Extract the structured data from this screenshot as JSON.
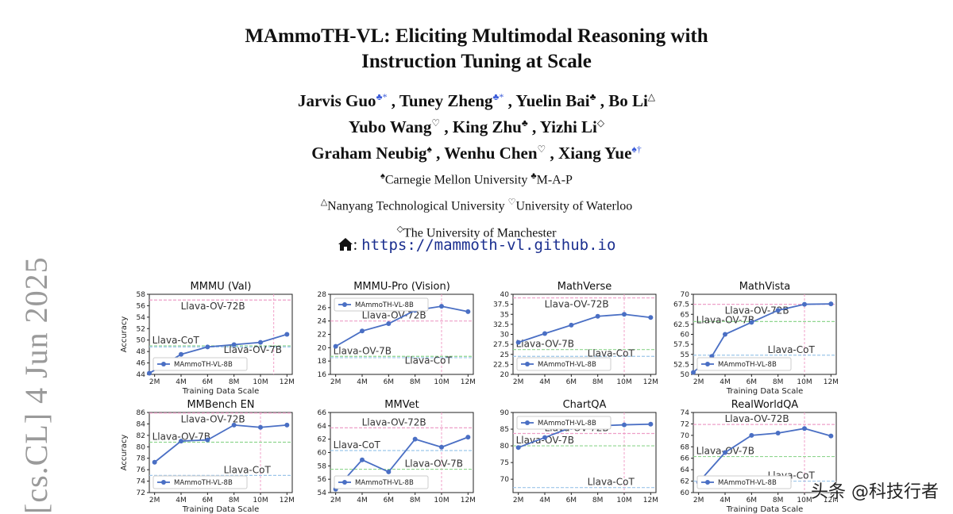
{
  "sidebar_stamp": "[cs.CL]  4 Jun 2025",
  "paper": {
    "title_line1": "MAmmoTH-VL: Eliciting Multimodal Reasoning with",
    "title_line2": "Instruction Tuning at Scale",
    "authors": [
      [
        {
          "name": "Jarvis Guo",
          "mark": "♣*"
        },
        {
          "name": "Tuney Zheng",
          "mark": "♣*"
        },
        {
          "name": "Yuelin Bai",
          "mark": "♣"
        },
        {
          "name": "Bo Li",
          "mark": "△"
        }
      ],
      [
        {
          "name": "Yubo Wang",
          "mark": "♡"
        },
        {
          "name": "King Zhu",
          "mark": "♣"
        },
        {
          "name": "Yizhi Li",
          "mark": "◇"
        }
      ],
      [
        {
          "name": "Graham Neubig",
          "mark": "♠"
        },
        {
          "name": "Wenhu Chen",
          "mark": "♡"
        },
        {
          "name": "Xiang Yue",
          "mark": "♠†"
        }
      ]
    ],
    "affiliations": [
      [
        {
          "mark": "♠",
          "text": "Carnegie Mellon University"
        },
        {
          "mark": "♣",
          "text": "M-A-P"
        }
      ],
      [
        {
          "mark": "△",
          "text": "Nanyang Technological University"
        },
        {
          "mark": "♡",
          "text": "University of Waterloo"
        }
      ],
      [
        {
          "mark": "◇",
          "text": "The University of Manchester"
        }
      ]
    ],
    "homepage_sep": ":",
    "homepage_url": "https://mammoth-vl.github.io"
  },
  "watermark": "头条 @科技行者",
  "colors": {
    "line": "#4a6fc4",
    "pink_ref": "#ee9fc8",
    "green_ref": "#8fd68f",
    "blue_ref": "#9cc6ea",
    "vline": "#f2a0c8"
  },
  "chart_data": [
    {
      "type": "line",
      "title": "MMMU (Val)",
      "xlabel": "Training Data Scale",
      "ylabel": "Accuracy",
      "x_ticks": [
        "2M",
        "4M",
        "6M",
        "8M",
        "10M",
        "12M"
      ],
      "ylim": [
        44,
        58
      ],
      "y_ticks": [
        44,
        46,
        48,
        50,
        52,
        54,
        56,
        58
      ],
      "series": [
        {
          "name": "MAmmoTH-VL-8B",
          "x": [
            1.6,
            4,
            6,
            8,
            10,
            12
          ],
          "y": [
            44.2,
            47.5,
            48.8,
            49.2,
            49.6,
            51.0
          ]
        }
      ],
      "refs": [
        {
          "label": "Llava-OV-72B",
          "y": 57.0,
          "color": "pink"
        },
        {
          "label": "Llava-CoT",
          "y": 49.0,
          "color": "green"
        },
        {
          "label": "Llava-OV-7B",
          "y": 48.8,
          "color": "blue"
        }
      ],
      "vline_x": 11.0,
      "legend": "bottom-left"
    },
    {
      "type": "line",
      "title": "MMMU-Pro (Vision)",
      "xlabel": "",
      "ylabel": "",
      "x_ticks": [
        "2M",
        "4M",
        "6M",
        "8M",
        "10M",
        "12M"
      ],
      "ylim": [
        16,
        28
      ],
      "y_ticks": [
        16,
        18,
        20,
        22,
        24,
        26,
        28
      ],
      "series": [
        {
          "name": "MAmmoTH-VL-8B",
          "x": [
            2,
            4,
            6,
            8,
            10,
            12
          ],
          "y": [
            20.2,
            22.5,
            23.6,
            25.6,
            26.2,
            25.4
          ]
        }
      ],
      "refs": [
        {
          "label": "Llava-OV-72B",
          "y": 24.0,
          "color": "pink"
        },
        {
          "label": "Llava-OV-7B",
          "y": 18.7,
          "color": "green"
        },
        {
          "label": "Llava-CoT",
          "y": 18.5,
          "color": "blue"
        }
      ],
      "vline_x": 10.0,
      "legend": "top-left"
    },
    {
      "type": "line",
      "title": "MathVerse",
      "xlabel": "",
      "ylabel": "",
      "x_ticks": [
        "2M",
        "4M",
        "6M",
        "8M",
        "10M",
        "12M"
      ],
      "ylim": [
        20,
        40
      ],
      "y_ticks": [
        20.0,
        22.5,
        25.0,
        27.5,
        30.0,
        32.5,
        35.0,
        37.5,
        40.0
      ],
      "series": [
        {
          "name": "MAmmoTH-VL-8B",
          "x": [
            2,
            4,
            6,
            8,
            10,
            12
          ],
          "y": [
            28.0,
            30.2,
            32.3,
            34.5,
            35.0,
            34.2
          ]
        }
      ],
      "refs": [
        {
          "label": "Llava-OV-72B",
          "y": 39.1,
          "color": "pink"
        },
        {
          "label": "Llava-OV-7B",
          "y": 26.2,
          "color": "green"
        },
        {
          "label": "Llava-CoT",
          "y": 24.5,
          "color": "blue"
        }
      ],
      "vline_x": 10.0,
      "legend": "bottom-left"
    },
    {
      "type": "line",
      "title": "MathVista",
      "xlabel": "Training Data Scale",
      "ylabel": "",
      "x_ticks": [
        "2M",
        "4M",
        "6M",
        "8M",
        "10M",
        "12M"
      ],
      "ylim": [
        50,
        70
      ],
      "y_ticks": [
        50.0,
        52.5,
        55.0,
        57.5,
        60.0,
        62.5,
        65.0,
        67.5,
        70.0
      ],
      "series": [
        {
          "name": "MAmmoTH-VL-8B",
          "x": [
            1.6,
            3,
            4,
            6,
            8,
            10,
            12
          ],
          "y": [
            50.5,
            54.5,
            60.0,
            63.0,
            66.0,
            67.5,
            67.6
          ]
        }
      ],
      "refs": [
        {
          "label": "Llava-OV-72B",
          "y": 67.5,
          "color": "pink"
        },
        {
          "label": "Llava-OV-7B",
          "y": 63.2,
          "color": "green"
        },
        {
          "label": "Llava-CoT",
          "y": 54.8,
          "color": "blue"
        }
      ],
      "vline_x": 10.0,
      "legend": "bottom-left"
    },
    {
      "type": "line",
      "title": "MMBench EN",
      "xlabel": "Training Data Scale",
      "ylabel": "Accuracy",
      "x_ticks": [
        "2M",
        "4M",
        "6M",
        "8M",
        "10M",
        "12M"
      ],
      "ylim": [
        72,
        86
      ],
      "y_ticks": [
        72,
        74,
        76,
        78,
        80,
        82,
        84,
        86
      ],
      "series": [
        {
          "name": "MAmmoTH-VL-8B",
          "x": [
            2,
            4,
            6,
            8,
            10,
            12
          ],
          "y": [
            77.3,
            81.0,
            81.2,
            83.8,
            83.4,
            83.8
          ]
        }
      ],
      "refs": [
        {
          "label": "Llava-OV-72B",
          "y": 85.9,
          "color": "pink"
        },
        {
          "label": "Llava-OV-7B",
          "y": 80.8,
          "color": "green"
        },
        {
          "label": "Llava-CoT",
          "y": 75.0,
          "color": "blue"
        }
      ],
      "vline_x": 10.0,
      "legend": "bottom-left"
    },
    {
      "type": "line",
      "title": "MMVet",
      "xlabel": "",
      "ylabel": "",
      "x_ticks": [
        "2M",
        "4M",
        "6M",
        "8M",
        "10M",
        "12M"
      ],
      "ylim": [
        54,
        66
      ],
      "y_ticks": [
        54,
        56,
        58,
        60,
        62,
        64,
        66
      ],
      "series": [
        {
          "name": "MAmmoTH-VL-8B",
          "x": [
            2,
            4,
            6,
            8,
            10,
            12
          ],
          "y": [
            54.5,
            58.9,
            57.1,
            62.0,
            60.8,
            62.3
          ]
        }
      ],
      "refs": [
        {
          "label": "Llava-OV-72B",
          "y": 63.7,
          "color": "pink"
        },
        {
          "label": "Llava-CoT",
          "y": 60.3,
          "color": "blue"
        },
        {
          "label": "Llava-OV-7B",
          "y": 57.5,
          "color": "green"
        }
      ],
      "vline_x": 10.0,
      "legend": "bottom-left"
    },
    {
      "type": "line",
      "title": "ChartQA",
      "xlabel": "",
      "ylabel": "",
      "x_ticks": [
        "2M",
        "4M",
        "6M",
        "8M",
        "10M",
        "12M"
      ],
      "ylim": [
        66,
        90
      ],
      "y_ticks": [
        70,
        75,
        80,
        85,
        90
      ],
      "series": [
        {
          "name": "MAmmoTH-VL-8B",
          "x": [
            2,
            4,
            6,
            8,
            10,
            12
          ],
          "y": [
            79.5,
            82.5,
            85.5,
            86.0,
            86.3,
            86.5
          ]
        }
      ],
      "refs": [
        {
          "label": "Llava-OV-72B",
          "y": 83.7,
          "color": "pink"
        },
        {
          "label": "Llava-OV-7B",
          "y": 80.0,
          "color": "green"
        },
        {
          "label": "Llava-CoT",
          "y": 67.5,
          "color": "blue"
        }
      ],
      "vline_x": 10.0,
      "legend": "top-left"
    },
    {
      "type": "line",
      "title": "RealWorldQA",
      "xlabel": "Training Data Scale",
      "ylabel": "",
      "x_ticks": [
        "2M",
        "4M",
        "6M",
        "8M",
        "10M",
        "12M"
      ],
      "ylim": [
        60,
        74
      ],
      "y_ticks": [
        60,
        62,
        64,
        66,
        68,
        70,
        72,
        74
      ],
      "series": [
        {
          "name": "MAmmoTH-VL-8B",
          "x": [
            2,
            4,
            6,
            8,
            10,
            12
          ],
          "y": [
            61.8,
            67.0,
            70.0,
            70.4,
            71.2,
            69.9
          ]
        }
      ],
      "refs": [
        {
          "label": "Llava-OV-72B",
          "y": 71.9,
          "color": "pink"
        },
        {
          "label": "Llava-OV-7B",
          "y": 66.3,
          "color": "green"
        },
        {
          "label": "Llava-CoT",
          "y": 62.0,
          "color": "blue"
        }
      ],
      "vline_x": 10.0,
      "legend": "bottom-left"
    }
  ]
}
